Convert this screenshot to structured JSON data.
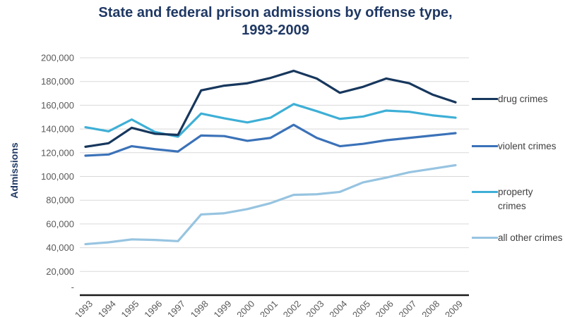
{
  "title": {
    "line1": "State and federal prison admissions by offense type,",
    "line2": "1993-2009"
  },
  "chart_data": {
    "type": "line",
    "title": "State and federal prison admissions by offense type, 1993-2009",
    "ylabel": "Admissions",
    "xlabel": "",
    "ylim": [
      0,
      200000
    ],
    "grid": true,
    "legend_position": "right",
    "x": [
      1993,
      1994,
      1995,
      1996,
      1997,
      1998,
      1999,
      2000,
      2001,
      2002,
      2003,
      2004,
      2005,
      2006,
      2007,
      2008,
      2009
    ],
    "x_tick_labels": [
      "1993",
      "1994",
      "1995",
      "1996",
      "1997",
      "1998",
      "1999",
      "2000",
      "2001",
      "2002",
      "2003",
      "2004",
      "2005",
      "2006",
      "2007",
      "2008",
      "2009"
    ],
    "y_ticks": [
      {
        "label": "200,000",
        "value": 200000
      },
      {
        "label": "180,000",
        "value": 180000
      },
      {
        "label": "160,000",
        "value": 160000
      },
      {
        "label": "140,000",
        "value": 140000
      },
      {
        "label": "120,000",
        "value": 120000
      },
      {
        "label": "100,000",
        "value": 100000
      },
      {
        "label": "80,000",
        "value": 80000
      },
      {
        "label": "60,000",
        "value": 60000
      },
      {
        "label": "40,000",
        "value": 40000
      },
      {
        "label": "20,000",
        "value": 20000
      },
      {
        "label": "-",
        "value": 0
      }
    ],
    "series": [
      {
        "name": "drug crimes",
        "color": "#17375D",
        "values": [
          125000,
          128000,
          141000,
          136000,
          135000,
          172500,
          176500,
          178500,
          183000,
          189000,
          182500,
          170500,
          175500,
          182500,
          178500,
          169000,
          162500
        ]
      },
      {
        "name": "violent crimes",
        "color": "#3B72B8",
        "values": [
          117500,
          118500,
          125500,
          123000,
          121000,
          134500,
          134000,
          130000,
          132500,
          143500,
          132500,
          125500,
          127500,
          130500,
          132500,
          134500,
          136500
        ]
      },
      {
        "name": "property crimes",
        "color": "#3EAFD6",
        "values": [
          141500,
          138000,
          148000,
          137500,
          133500,
          153000,
          149000,
          145500,
          149500,
          161000,
          155000,
          148500,
          150500,
          155500,
          154500,
          151500,
          149500
        ]
      },
      {
        "name": "all other crimes",
        "color": "#97C4E1",
        "values": [
          43000,
          44500,
          47000,
          46500,
          45500,
          68000,
          69000,
          72500,
          77500,
          84500,
          85000,
          87000,
          95000,
          99000,
          103500,
          106500,
          109500
        ]
      }
    ]
  },
  "colors": {
    "title": "#1F3864",
    "axis_text": "#595959",
    "gridline": "#D9D9D9",
    "axis_line": "#1A1A1A",
    "legend_text": "#3F3F3F",
    "background": "#FFFFFF"
  }
}
